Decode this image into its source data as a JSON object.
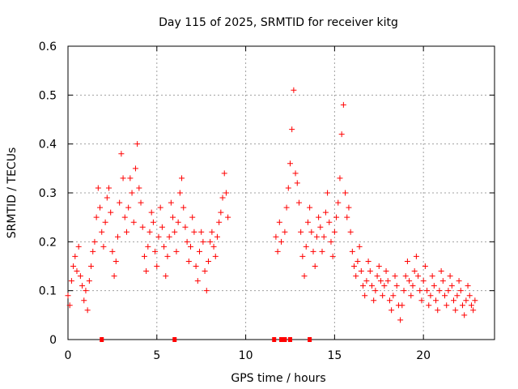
{
  "chart_data": {
    "type": "scatter",
    "title": "Day 115 of 2025, SRMTID for receiver kitg",
    "xlabel": "GPS time / hours",
    "ylabel": "SRMTID / TECUs",
    "xlim": [
      0,
      24
    ],
    "ylim": [
      0,
      0.6
    ],
    "xticks": [
      0,
      5,
      10,
      15,
      20
    ],
    "yticks": [
      0,
      0.1,
      0.2,
      0.3,
      0.4,
      0.5,
      0.6
    ],
    "xtick_labels": [
      "0",
      "5",
      "10",
      "15",
      "20"
    ],
    "ytick_labels": [
      "0",
      "0.1",
      "0.2",
      "0.3",
      "0.4",
      "0.5",
      "0.6"
    ],
    "grid": true,
    "marker": "+",
    "color": "#ff0000",
    "series": [
      {
        "name": "SRMTID",
        "points": [
          [
            0.0,
            0.09
          ],
          [
            0.1,
            0.07
          ],
          [
            0.2,
            0.12
          ],
          [
            0.3,
            0.15
          ],
          [
            0.4,
            0.17
          ],
          [
            0.5,
            0.14
          ],
          [
            0.6,
            0.19
          ],
          [
            0.7,
            0.13
          ],
          [
            0.8,
            0.11
          ],
          [
            0.9,
            0.08
          ],
          [
            1.0,
            0.1
          ],
          [
            1.1,
            0.06
          ],
          [
            1.2,
            0.12
          ],
          [
            1.3,
            0.15
          ],
          [
            1.4,
            0.18
          ],
          [
            1.5,
            0.2
          ],
          [
            1.6,
            0.25
          ],
          [
            1.7,
            0.31
          ],
          [
            1.8,
            0.27
          ],
          [
            1.9,
            0.22
          ],
          [
            2.0,
            0.19
          ],
          [
            2.1,
            0.24
          ],
          [
            2.2,
            0.29
          ],
          [
            2.3,
            0.31
          ],
          [
            2.4,
            0.26
          ],
          [
            2.5,
            0.18
          ],
          [
            2.6,
            0.13
          ],
          [
            2.7,
            0.16
          ],
          [
            2.8,
            0.21
          ],
          [
            2.9,
            0.28
          ],
          [
            3.0,
            0.38
          ],
          [
            3.1,
            0.33
          ],
          [
            3.2,
            0.25
          ],
          [
            3.3,
            0.22
          ],
          [
            3.4,
            0.27
          ],
          [
            3.5,
            0.33
          ],
          [
            3.6,
            0.3
          ],
          [
            3.7,
            0.24
          ],
          [
            3.8,
            0.35
          ],
          [
            3.9,
            0.4
          ],
          [
            4.0,
            0.31
          ],
          [
            4.1,
            0.28
          ],
          [
            4.2,
            0.23
          ],
          [
            4.3,
            0.17
          ],
          [
            4.4,
            0.14
          ],
          [
            4.5,
            0.19
          ],
          [
            4.6,
            0.22
          ],
          [
            4.7,
            0.26
          ],
          [
            4.8,
            0.24
          ],
          [
            4.9,
            0.18
          ],
          [
            5.0,
            0.15
          ],
          [
            5.1,
            0.21
          ],
          [
            5.2,
            0.27
          ],
          [
            5.3,
            0.23
          ],
          [
            5.4,
            0.19
          ],
          [
            5.5,
            0.13
          ],
          [
            5.6,
            0.17
          ],
          [
            5.7,
            0.21
          ],
          [
            5.8,
            0.28
          ],
          [
            5.9,
            0.25
          ],
          [
            6.0,
            0.22
          ],
          [
            6.1,
            0.18
          ],
          [
            6.2,
            0.24
          ],
          [
            6.3,
            0.3
          ],
          [
            6.4,
            0.33
          ],
          [
            6.5,
            0.27
          ],
          [
            6.6,
            0.23
          ],
          [
            6.7,
            0.2
          ],
          [
            6.8,
            0.16
          ],
          [
            6.9,
            0.19
          ],
          [
            7.0,
            0.25
          ],
          [
            7.1,
            0.22
          ],
          [
            7.2,
            0.15
          ],
          [
            7.3,
            0.12
          ],
          [
            7.4,
            0.18
          ],
          [
            7.5,
            0.22
          ],
          [
            7.6,
            0.2
          ],
          [
            7.7,
            0.14
          ],
          [
            7.8,
            0.1
          ],
          [
            7.9,
            0.16
          ],
          [
            8.0,
            0.2
          ],
          [
            8.1,
            0.22
          ],
          [
            8.2,
            0.19
          ],
          [
            8.3,
            0.17
          ],
          [
            8.4,
            0.21
          ],
          [
            8.5,
            0.24
          ],
          [
            8.6,
            0.26
          ],
          [
            8.7,
            0.29
          ],
          [
            8.8,
            0.34
          ],
          [
            8.9,
            0.3
          ],
          [
            9.0,
            0.25
          ],
          [
            11.7,
            0.21
          ],
          [
            11.8,
            0.18
          ],
          [
            11.9,
            0.24
          ],
          [
            12.0,
            0.2
          ],
          [
            12.2,
            0.22
          ],
          [
            12.3,
            0.27
          ],
          [
            12.4,
            0.31
          ],
          [
            12.5,
            0.36
          ],
          [
            12.6,
            0.43
          ],
          [
            12.7,
            0.51
          ],
          [
            12.8,
            0.34
          ],
          [
            12.9,
            0.32
          ],
          [
            13.0,
            0.28
          ],
          [
            13.1,
            0.22
          ],
          [
            13.2,
            0.17
          ],
          [
            13.3,
            0.13
          ],
          [
            13.4,
            0.19
          ],
          [
            13.5,
            0.24
          ],
          [
            13.6,
            0.27
          ],
          [
            13.7,
            0.22
          ],
          [
            13.8,
            0.18
          ],
          [
            13.9,
            0.15
          ],
          [
            14.0,
            0.21
          ],
          [
            14.1,
            0.25
          ],
          [
            14.2,
            0.23
          ],
          [
            14.3,
            0.18
          ],
          [
            14.4,
            0.21
          ],
          [
            14.5,
            0.26
          ],
          [
            14.6,
            0.3
          ],
          [
            14.7,
            0.24
          ],
          [
            14.8,
            0.2
          ],
          [
            14.9,
            0.17
          ],
          [
            15.0,
            0.22
          ],
          [
            15.1,
            0.25
          ],
          [
            15.2,
            0.28
          ],
          [
            15.3,
            0.33
          ],
          [
            15.4,
            0.42
          ],
          [
            15.5,
            0.48
          ],
          [
            15.6,
            0.3
          ],
          [
            15.7,
            0.25
          ],
          [
            15.8,
            0.27
          ],
          [
            15.9,
            0.22
          ],
          [
            16.0,
            0.18
          ],
          [
            16.1,
            0.15
          ],
          [
            16.2,
            0.13
          ],
          [
            16.3,
            0.16
          ],
          [
            16.4,
            0.19
          ],
          [
            16.5,
            0.14
          ],
          [
            16.6,
            0.11
          ],
          [
            16.7,
            0.09
          ],
          [
            16.8,
            0.12
          ],
          [
            16.9,
            0.16
          ],
          [
            17.0,
            0.14
          ],
          [
            17.1,
            0.11
          ],
          [
            17.2,
            0.08
          ],
          [
            17.3,
            0.1
          ],
          [
            17.4,
            0.13
          ],
          [
            17.5,
            0.15
          ],
          [
            17.6,
            0.12
          ],
          [
            17.7,
            0.09
          ],
          [
            17.8,
            0.11
          ],
          [
            17.9,
            0.14
          ],
          [
            18.0,
            0.12
          ],
          [
            18.1,
            0.08
          ],
          [
            18.2,
            0.06
          ],
          [
            18.3,
            0.09
          ],
          [
            18.4,
            0.13
          ],
          [
            18.5,
            0.11
          ],
          [
            18.6,
            0.07
          ],
          [
            18.7,
            0.04
          ],
          [
            18.8,
            0.07
          ],
          [
            18.9,
            0.1
          ],
          [
            19.0,
            0.13
          ],
          [
            19.1,
            0.16
          ],
          [
            19.2,
            0.12
          ],
          [
            19.3,
            0.09
          ],
          [
            19.4,
            0.11
          ],
          [
            19.5,
            0.14
          ],
          [
            19.6,
            0.17
          ],
          [
            19.7,
            0.13
          ],
          [
            19.8,
            0.1
          ],
          [
            19.9,
            0.08
          ],
          [
            20.0,
            0.12
          ],
          [
            20.1,
            0.15
          ],
          [
            20.2,
            0.1
          ],
          [
            20.3,
            0.07
          ],
          [
            20.4,
            0.09
          ],
          [
            20.5,
            0.13
          ],
          [
            20.6,
            0.11
          ],
          [
            20.7,
            0.08
          ],
          [
            20.8,
            0.06
          ],
          [
            20.9,
            0.1
          ],
          [
            21.0,
            0.14
          ],
          [
            21.1,
            0.12
          ],
          [
            21.2,
            0.09
          ],
          [
            21.3,
            0.07
          ],
          [
            21.4,
            0.1
          ],
          [
            21.5,
            0.13
          ],
          [
            21.6,
            0.11
          ],
          [
            21.7,
            0.08
          ],
          [
            21.8,
            0.06
          ],
          [
            21.9,
            0.09
          ],
          [
            22.0,
            0.12
          ],
          [
            22.1,
            0.1
          ],
          [
            22.2,
            0.07
          ],
          [
            22.3,
            0.05
          ],
          [
            22.4,
            0.08
          ],
          [
            22.5,
            0.11
          ],
          [
            22.6,
            0.09
          ],
          [
            22.7,
            0.07
          ],
          [
            22.8,
            0.06
          ],
          [
            22.9,
            0.08
          ]
        ]
      }
    ],
    "zero_markers_x": [
      1.9,
      6.0,
      11.6,
      12.0,
      12.2,
      12.5,
      13.6
    ]
  }
}
